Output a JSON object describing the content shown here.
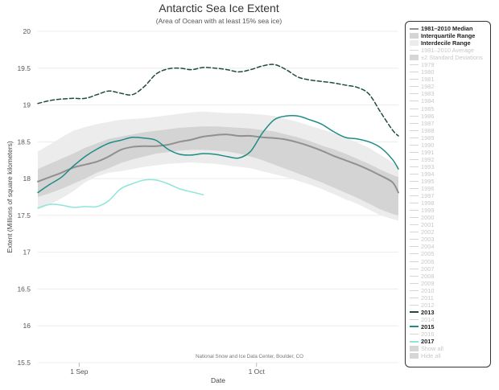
{
  "chart_data": {
    "type": "line",
    "title": "Antarctic Sea Ice Extent",
    "subtitle": "(Area of Ocean with at least 15% sea ice)",
    "xlabel": "Date",
    "ylabel": "Extent (Millions of square kilometers)",
    "credit": "National Snow and Ice Data Center, Boulder, CO",
    "xlim": [
      0,
      61
    ],
    "ylim": [
      15.5,
      20
    ],
    "yticks": [
      "15.5",
      "16",
      "16.5",
      "17",
      "17.5",
      "18",
      "18.5",
      "19",
      "19.5",
      "20"
    ],
    "xticks": [
      {
        "day": 7,
        "label": "1 Sep"
      },
      {
        "day": 37,
        "label": "1 Oct"
      }
    ],
    "x": [
      0,
      2,
      4,
      6,
      8,
      10,
      12,
      14,
      16,
      18,
      20,
      22,
      24,
      26,
      28,
      30,
      32,
      34,
      36,
      38,
      40,
      42,
      44,
      46,
      48,
      50,
      52,
      54,
      56,
      58,
      60,
      61
    ],
    "bands": {
      "interdecile": {
        "upper": [
          18.37,
          18.46,
          18.56,
          18.65,
          18.7,
          18.74,
          18.77,
          18.8,
          18.81,
          18.82,
          18.84,
          18.86,
          18.88,
          18.9,
          18.91,
          18.9,
          18.89,
          18.89,
          18.88,
          18.87,
          18.85,
          18.81,
          18.77,
          18.72,
          18.67,
          18.62,
          18.56,
          18.49,
          18.42,
          18.32,
          18.22,
          18.17
        ],
        "lower": [
          17.58,
          17.65,
          17.73,
          17.83,
          17.95,
          18.03,
          18.08,
          18.1,
          18.13,
          18.16,
          18.18,
          18.2,
          18.21,
          18.22,
          18.21,
          18.2,
          18.18,
          18.16,
          18.14,
          18.1,
          18.06,
          18.02,
          17.97,
          17.92,
          17.86,
          17.79,
          17.72,
          17.66,
          17.58,
          17.5,
          17.45,
          17.43
        ]
      },
      "interquartile": {
        "upper": [
          18.13,
          18.2,
          18.27,
          18.34,
          18.42,
          18.48,
          18.54,
          18.57,
          18.6,
          18.63,
          18.65,
          18.67,
          18.69,
          18.7,
          18.71,
          18.71,
          18.7,
          18.69,
          18.68,
          18.66,
          18.64,
          18.6,
          18.56,
          18.51,
          18.45,
          18.4,
          18.34,
          18.27,
          18.2,
          18.12,
          18.05,
          18.02
        ],
        "lower": [
          17.75,
          17.8,
          17.86,
          17.93,
          18.0,
          18.08,
          18.14,
          18.21,
          18.26,
          18.3,
          18.34,
          18.36,
          18.38,
          18.39,
          18.39,
          18.38,
          18.37,
          18.34,
          18.3,
          18.25,
          18.19,
          18.13,
          18.07,
          18.01,
          17.95,
          17.88,
          17.81,
          17.74,
          17.66,
          17.58,
          17.52,
          17.5
        ]
      }
    },
    "series": [
      {
        "name": "1981-2010 Median",
        "style": "solid",
        "color": "#909090",
        "values": [
          17.96,
          18.02,
          18.08,
          18.15,
          18.19,
          18.23,
          18.3,
          18.39,
          18.43,
          18.44,
          18.44,
          18.46,
          18.5,
          18.53,
          18.57,
          18.59,
          18.6,
          18.58,
          18.58,
          18.56,
          18.55,
          18.53,
          18.49,
          18.44,
          18.38,
          18.31,
          18.25,
          18.19,
          18.12,
          18.04,
          17.95,
          17.81
        ]
      },
      {
        "name": "2013",
        "style": "dashed",
        "color": "#1e4d3a",
        "values": [
          19.02,
          19.06,
          19.08,
          19.09,
          19.09,
          19.14,
          19.19,
          19.16,
          19.14,
          19.25,
          19.42,
          19.49,
          19.5,
          19.48,
          19.51,
          19.5,
          19.48,
          19.45,
          19.48,
          19.53,
          19.55,
          19.48,
          19.38,
          19.34,
          19.32,
          19.3,
          19.27,
          19.24,
          19.15,
          18.9,
          18.66,
          18.58
        ]
      },
      {
        "name": "2015",
        "style": "solid",
        "color": "#1e8c85",
        "values": [
          17.81,
          17.92,
          18.02,
          18.17,
          18.3,
          18.4,
          18.48,
          18.52,
          18.56,
          18.55,
          18.52,
          18.4,
          18.33,
          18.32,
          18.34,
          18.33,
          18.3,
          18.28,
          18.37,
          18.62,
          18.8,
          18.85,
          18.85,
          18.8,
          18.74,
          18.64,
          18.56,
          18.54,
          18.5,
          18.42,
          18.26,
          18.13
        ]
      },
      {
        "name": "2017",
        "style": "solid",
        "color": "#8de6d8",
        "values": [
          17.6,
          17.65,
          17.64,
          17.61,
          17.62,
          17.62,
          17.7,
          17.86,
          17.93,
          17.98,
          17.98,
          17.93,
          17.86,
          17.82,
          17.78,
          null,
          null,
          null,
          null,
          null,
          null,
          null,
          null,
          null,
          null,
          null,
          null,
          null,
          null,
          null,
          null,
          null
        ]
      }
    ],
    "legend": [
      {
        "label": "1981–2010 Median",
        "kind": "line",
        "color": "#909090",
        "active": true
      },
      {
        "label": "Interquartile Range",
        "kind": "swatch",
        "color": "#d4d4d4",
        "active": true
      },
      {
        "label": "Interdecile Range",
        "kind": "swatch",
        "color": "#ececec",
        "active": true
      },
      {
        "label": "1981–2010 Average",
        "kind": "line",
        "color": "#d6d6d6",
        "active": false
      },
      {
        "label": "±2 Standard Deviations",
        "kind": "swatch",
        "color": "#d6d6d6",
        "active": false
      },
      {
        "label": "1979",
        "kind": "line",
        "color": "#d6d6d6",
        "active": false
      },
      {
        "label": "1980",
        "kind": "line",
        "color": "#d6d6d6",
        "active": false
      },
      {
        "label": "1981",
        "kind": "line",
        "color": "#d6d6d6",
        "active": false
      },
      {
        "label": "1982",
        "kind": "line",
        "color": "#d6d6d6",
        "active": false
      },
      {
        "label": "1983",
        "kind": "line",
        "color": "#d6d6d6",
        "active": false
      },
      {
        "label": "1984",
        "kind": "line",
        "color": "#d6d6d6",
        "active": false
      },
      {
        "label": "1985",
        "kind": "line",
        "color": "#d6d6d6",
        "active": false
      },
      {
        "label": "1986",
        "kind": "line",
        "color": "#d6d6d6",
        "active": false
      },
      {
        "label": "1987",
        "kind": "line",
        "color": "#d6d6d6",
        "active": false
      },
      {
        "label": "1988",
        "kind": "line",
        "color": "#d6d6d6",
        "active": false
      },
      {
        "label": "1989",
        "kind": "line",
        "color": "#d6d6d6",
        "active": false
      },
      {
        "label": "1990",
        "kind": "line",
        "color": "#d6d6d6",
        "active": false
      },
      {
        "label": "1991",
        "kind": "line",
        "color": "#d6d6d6",
        "active": false
      },
      {
        "label": "1992",
        "kind": "line",
        "color": "#d6d6d6",
        "active": false
      },
      {
        "label": "1993",
        "kind": "line",
        "color": "#d6d6d6",
        "active": false
      },
      {
        "label": "1994",
        "kind": "line",
        "color": "#d6d6d6",
        "active": false
      },
      {
        "label": "1995",
        "kind": "line",
        "color": "#d6d6d6",
        "active": false
      },
      {
        "label": "1996",
        "kind": "line",
        "color": "#d6d6d6",
        "active": false
      },
      {
        "label": "1997",
        "kind": "line",
        "color": "#d6d6d6",
        "active": false
      },
      {
        "label": "1998",
        "kind": "line",
        "color": "#d6d6d6",
        "active": false
      },
      {
        "label": "1999",
        "kind": "line",
        "color": "#d6d6d6",
        "active": false
      },
      {
        "label": "2000",
        "kind": "line",
        "color": "#d6d6d6",
        "active": false
      },
      {
        "label": "2001",
        "kind": "line",
        "color": "#d6d6d6",
        "active": false
      },
      {
        "label": "2002",
        "kind": "line",
        "color": "#d6d6d6",
        "active": false
      },
      {
        "label": "2003",
        "kind": "line",
        "color": "#d6d6d6",
        "active": false
      },
      {
        "label": "2004",
        "kind": "line",
        "color": "#d6d6d6",
        "active": false
      },
      {
        "label": "2005",
        "kind": "line",
        "color": "#d6d6d6",
        "active": false
      },
      {
        "label": "2006",
        "kind": "line",
        "color": "#d6d6d6",
        "active": false
      },
      {
        "label": "2007",
        "kind": "line",
        "color": "#d6d6d6",
        "active": false
      },
      {
        "label": "2008",
        "kind": "line",
        "color": "#d6d6d6",
        "active": false
      },
      {
        "label": "2009",
        "kind": "line",
        "color": "#d6d6d6",
        "active": false
      },
      {
        "label": "2010",
        "kind": "line",
        "color": "#d6d6d6",
        "active": false
      },
      {
        "label": "2011",
        "kind": "line",
        "color": "#d6d6d6",
        "active": false
      },
      {
        "label": "2012",
        "kind": "line",
        "color": "#d6d6d6",
        "active": false
      },
      {
        "label": "2013",
        "kind": "dash",
        "color": "#1e4d3a",
        "active": true
      },
      {
        "label": "2014",
        "kind": "line",
        "color": "#d6d6d6",
        "active": false
      },
      {
        "label": "2015",
        "kind": "line",
        "color": "#1e8c85",
        "active": true
      },
      {
        "label": "2016",
        "kind": "line",
        "color": "#d6d6d6",
        "active": false
      },
      {
        "label": "2017",
        "kind": "line",
        "color": "#8de6d8",
        "active": true
      },
      {
        "label": "Show all",
        "kind": "swatch",
        "color": "#d6d6d6",
        "active": false
      },
      {
        "label": "Hide all",
        "kind": "swatch",
        "color": "#d6d6d6",
        "active": false
      }
    ]
  }
}
